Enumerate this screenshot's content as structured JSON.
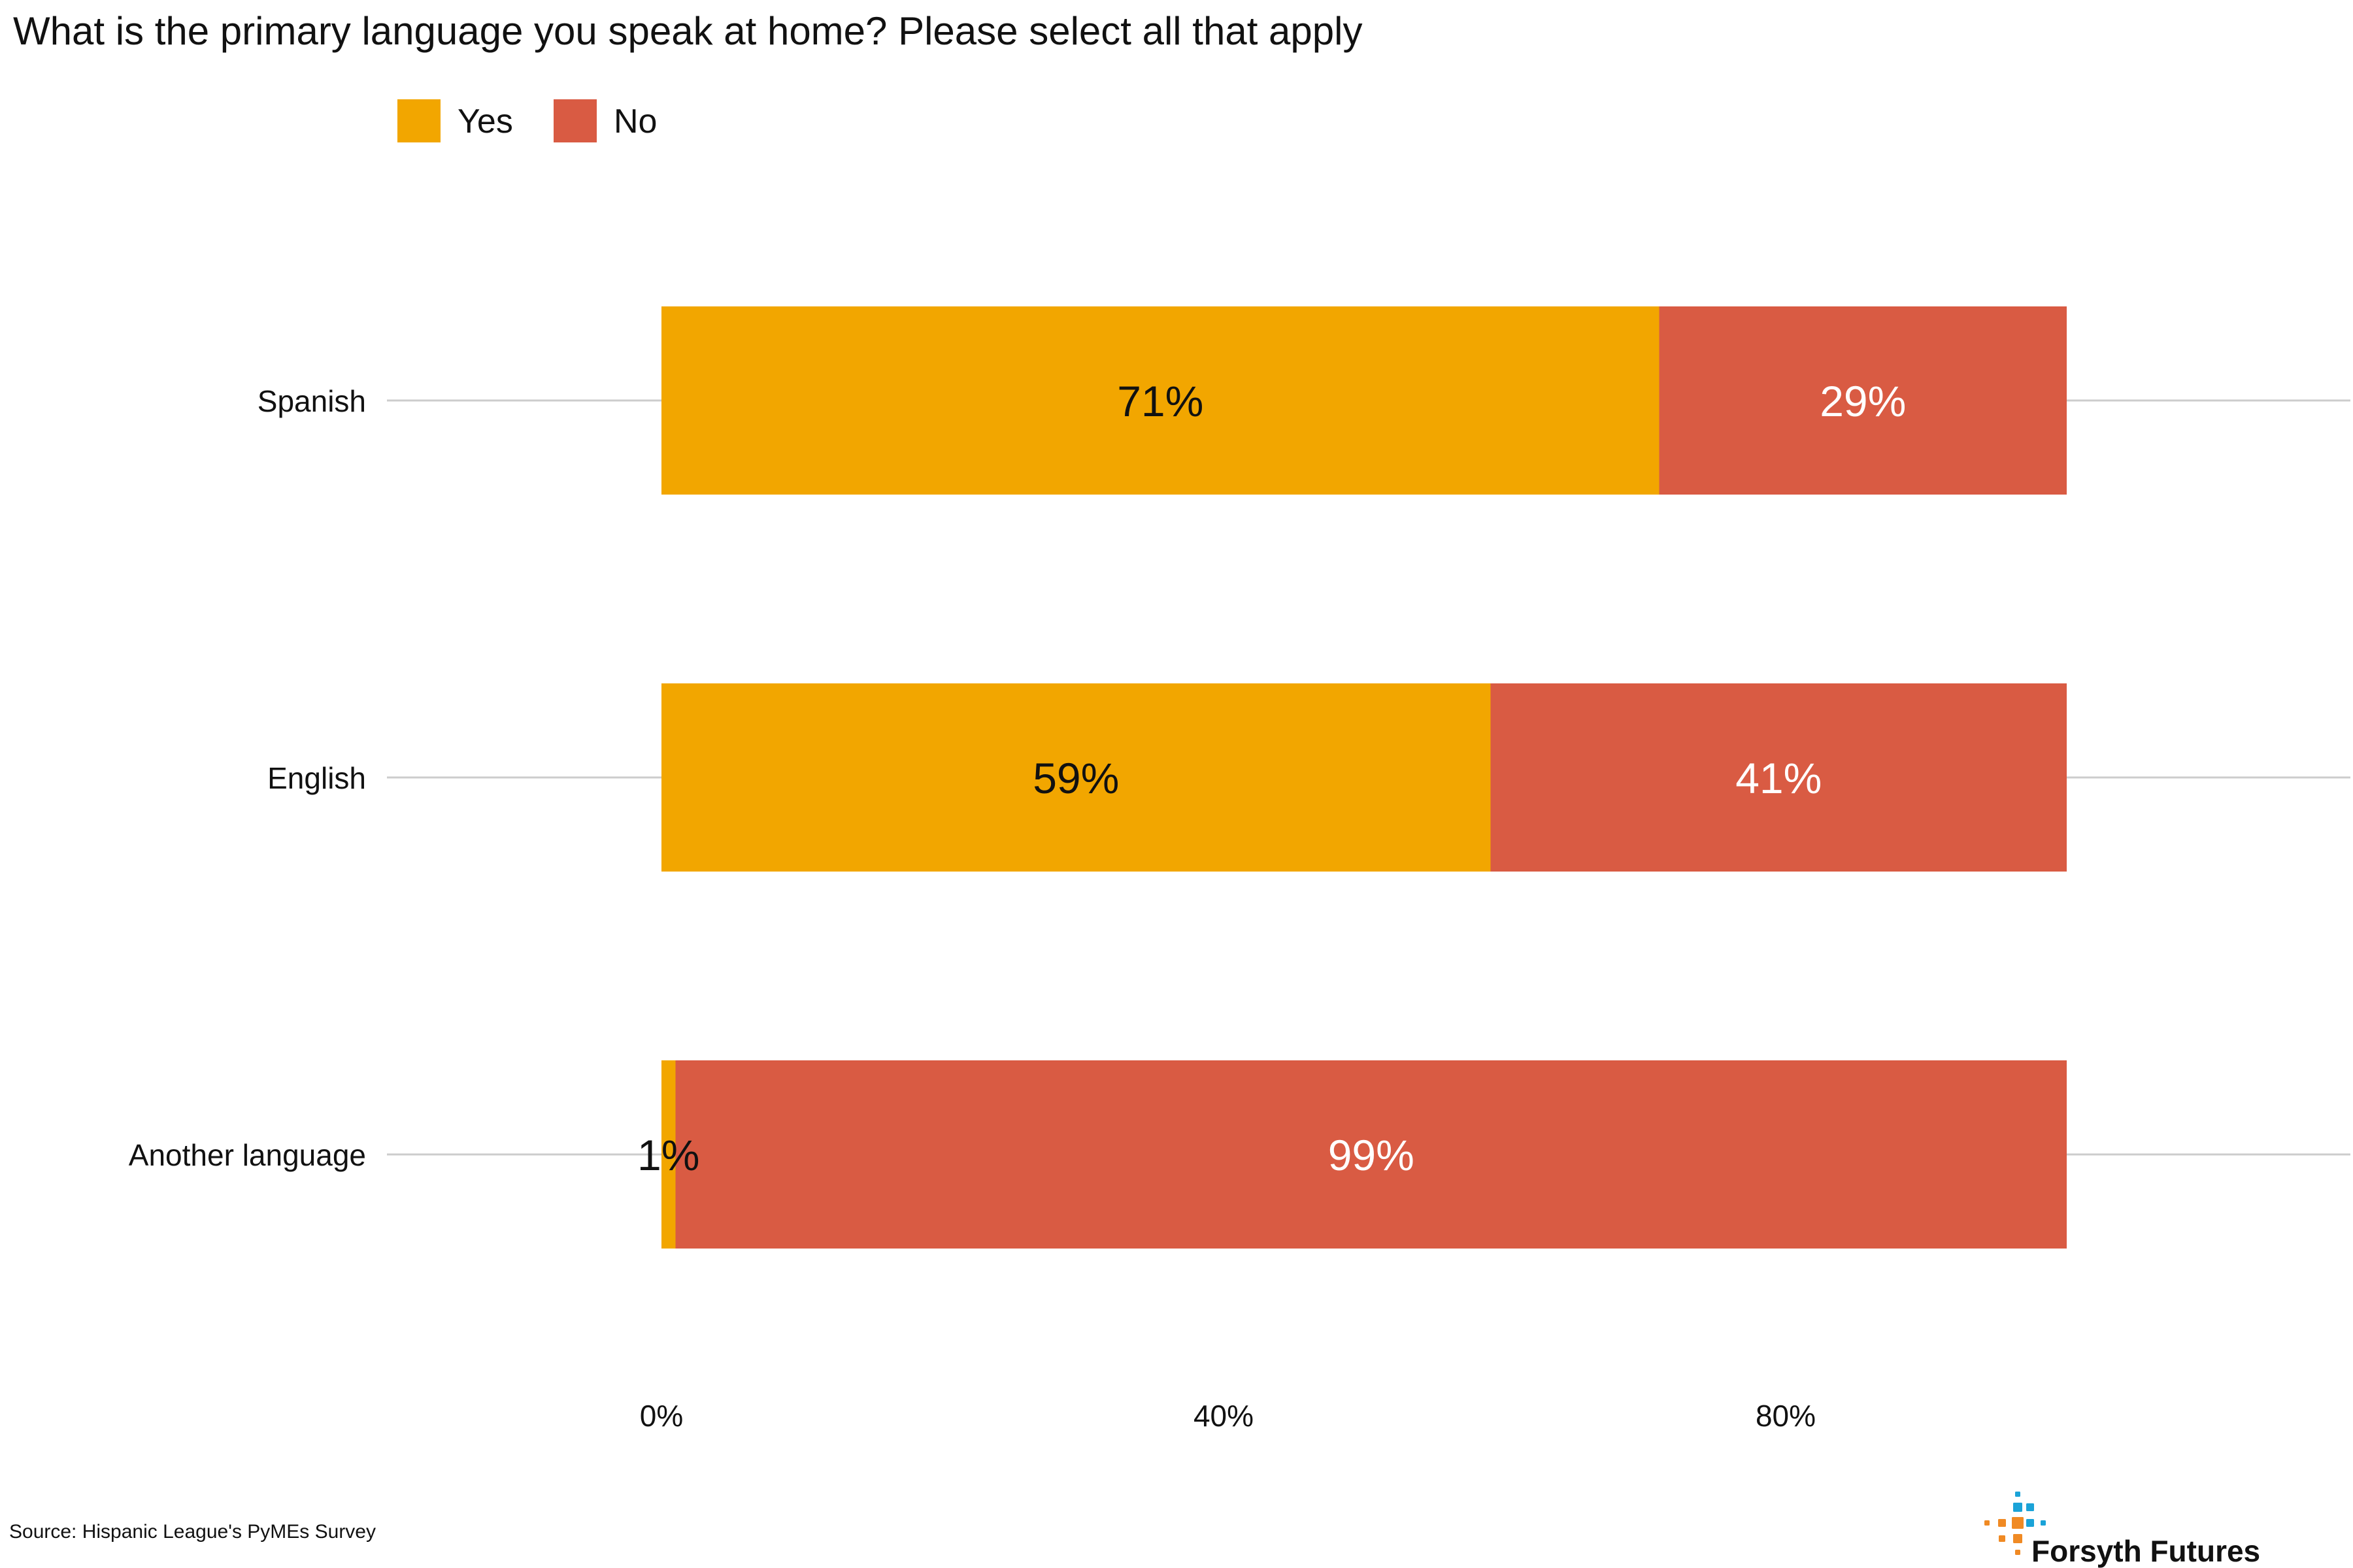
{
  "chart_data": {
    "type": "bar",
    "orientation": "horizontal",
    "stacked": true,
    "title": "What is the primary language you speak at home? Please select all that apply",
    "categories": [
      "Spanish",
      "English",
      "Another language"
    ],
    "series": [
      {
        "name": "Yes",
        "values": [
          71,
          59,
          1
        ],
        "labels": [
          "71%",
          "59%",
          "1%"
        ],
        "color": "#F2A600",
        "label_color": "#111111"
      },
      {
        "name": "No",
        "values": [
          29,
          41,
          99
        ],
        "labels": [
          "29%",
          "41%",
          "99%"
        ],
        "color": "#D95B43",
        "label_color": "#ffffff"
      }
    ],
    "x_ticks": [
      0,
      40,
      80
    ],
    "x_tick_labels": [
      "0%",
      "40%",
      "80%"
    ],
    "xlim": [
      0,
      100
    ],
    "grid": "horizontal lines at categories",
    "legend_position": "top-left",
    "grid_color": "#CCCCCC",
    "source": "Source: Hispanic League's PyMEs Survey"
  },
  "brand": {
    "name": "Forsyth Futures",
    "logo_icon": "dot-cross-logo",
    "logo_colors": [
      "#1BA3D8",
      "#F08A24"
    ]
  }
}
